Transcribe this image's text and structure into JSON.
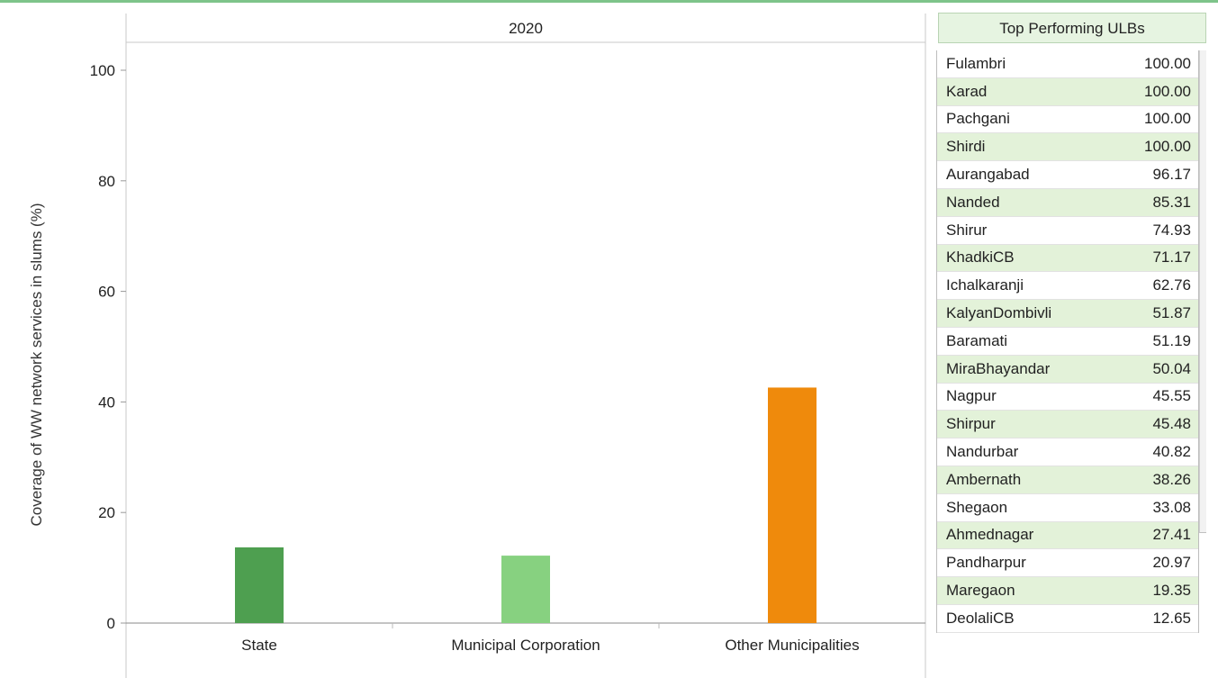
{
  "chart_data": {
    "type": "bar",
    "facet_label": "2020",
    "categories": [
      "State",
      "Municipal Corporation",
      "Other Municipalities"
    ],
    "values": [
      13.7,
      12.2,
      42.6
    ],
    "colors": [
      "#4e9f50",
      "#87d180",
      "#ef8a0c"
    ],
    "ylabel": "Coverage of WW network services in slums (%)",
    "ylim": [
      0,
      100
    ],
    "yticks": [
      0,
      20,
      40,
      60,
      80,
      100
    ],
    "grid": false
  },
  "panel": {
    "title": "Top Performing ULBs",
    "rows": [
      {
        "name": "Fulambri",
        "value": "100.00"
      },
      {
        "name": "Karad",
        "value": "100.00"
      },
      {
        "name": "Pachgani",
        "value": "100.00"
      },
      {
        "name": "Shirdi",
        "value": "100.00"
      },
      {
        "name": "Aurangabad",
        "value": "96.17"
      },
      {
        "name": "Nanded",
        "value": "85.31"
      },
      {
        "name": "Shirur",
        "value": "74.93"
      },
      {
        "name": "KhadkiCB",
        "value": "71.17"
      },
      {
        "name": "Ichalkaranji",
        "value": "62.76"
      },
      {
        "name": "KalyanDombivli",
        "value": "51.87"
      },
      {
        "name": "Baramati",
        "value": "51.19"
      },
      {
        "name": "MiraBhayandar",
        "value": "50.04"
      },
      {
        "name": "Nagpur",
        "value": "45.55"
      },
      {
        "name": "Shirpur",
        "value": "45.48"
      },
      {
        "name": "Nandurbar",
        "value": "40.82"
      },
      {
        "name": "Ambernath",
        "value": "38.26"
      },
      {
        "name": "Shegaon",
        "value": "33.08"
      },
      {
        "name": "Ahmednagar",
        "value": "27.41"
      },
      {
        "name": "Pandharpur",
        "value": "20.97"
      },
      {
        "name": "Maregaon",
        "value": "19.35"
      },
      {
        "name": "DeolaliCB",
        "value": "12.65"
      }
    ]
  }
}
